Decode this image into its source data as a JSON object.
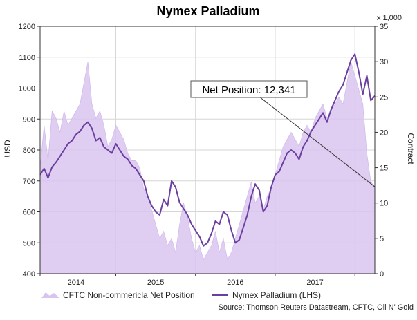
{
  "chart_data": {
    "type": "area",
    "title": "Nymex Palladium",
    "ylabel_left": "USD",
    "ylabel_right": "Contract",
    "right_multiplier": "x 1,000",
    "source": "Source: Thomson Reuters Datastream, CFTC, Oil N' Gold",
    "annotation": "Net Position: 12,341",
    "ylim_left": [
      400,
      1200
    ],
    "ylim_right": [
      0,
      35
    ],
    "yticks_left": [
      "400",
      "500",
      "600",
      "700",
      "800",
      "900",
      "1000",
      "1100",
      "1200"
    ],
    "yticks_right": [
      "0",
      "5",
      "10",
      "15",
      "20",
      "25",
      "30",
      "35"
    ],
    "x_labels": [
      "2014",
      "2015",
      "2016",
      "2017"
    ],
    "x_label_positions": [
      2014.0,
      2015.0,
      2016.0,
      2017.0
    ],
    "x_bounds": [
      2013.55,
      2017.75
    ],
    "x_grid": [
      2013.55,
      2014.5,
      2015.5,
      2016.5,
      2017.5
    ],
    "grid": true,
    "legend_position": "bottom",
    "series": [
      {
        "name": "CFTC Non-commericla Net Position",
        "type": "area",
        "axis": "right",
        "color": "#d9c4f0",
        "x": [
          2013.55,
          2013.6,
          2013.65,
          2013.7,
          2013.75,
          2013.8,
          2013.85,
          2013.9,
          2013.95,
          2014.0,
          2014.05,
          2014.1,
          2014.15,
          2014.2,
          2014.25,
          2014.3,
          2014.35,
          2014.4,
          2014.45,
          2014.5,
          2014.55,
          2014.6,
          2014.65,
          2014.7,
          2014.75,
          2014.8,
          2014.85,
          2014.9,
          2014.95,
          2015.0,
          2015.05,
          2015.1,
          2015.15,
          2015.2,
          2015.25,
          2015.3,
          2015.35,
          2015.4,
          2015.45,
          2015.5,
          2015.55,
          2015.6,
          2015.65,
          2015.7,
          2015.75,
          2015.8,
          2015.85,
          2015.9,
          2015.95,
          2016.0,
          2016.05,
          2016.1,
          2016.15,
          2016.2,
          2016.25,
          2016.3,
          2016.35,
          2016.4,
          2016.45,
          2016.5,
          2016.55,
          2016.6,
          2016.65,
          2016.7,
          2016.75,
          2016.8,
          2016.85,
          2016.9,
          2016.95,
          2017.0,
          2017.05,
          2017.1,
          2017.15,
          2017.2,
          2017.25,
          2017.3,
          2017.35,
          2017.4,
          2017.45,
          2017.5,
          2017.55,
          2017.6,
          2017.65,
          2017.7,
          2017.75
        ],
        "values": [
          15,
          21,
          16,
          23,
          22,
          20,
          23,
          21,
          22,
          23,
          24,
          27,
          30,
          24,
          22,
          23,
          21,
          18,
          19,
          21,
          20,
          19,
          17,
          16,
          16,
          15,
          12,
          11,
          9,
          7,
          5,
          6,
          4,
          5,
          3,
          7,
          10,
          8,
          5,
          3,
          4,
          2,
          3,
          4,
          6,
          3,
          5,
          2,
          3,
          5,
          7,
          9,
          11,
          13,
          10,
          11,
          9,
          11,
          12,
          14,
          16,
          18,
          19,
          20,
          19,
          18,
          20,
          21,
          20,
          22,
          23,
          24,
          22,
          23,
          24,
          25,
          24,
          27,
          30,
          28,
          26,
          24,
          17,
          13,
          12.3
        ]
      },
      {
        "name": "Nymex Palladium (LHS)",
        "type": "line",
        "axis": "left",
        "color": "#6b3fa0",
        "x": [
          2013.55,
          2013.6,
          2013.65,
          2013.7,
          2013.75,
          2013.8,
          2013.85,
          2013.9,
          2013.95,
          2014.0,
          2014.05,
          2014.1,
          2014.15,
          2014.2,
          2014.25,
          2014.3,
          2014.35,
          2014.4,
          2014.45,
          2014.5,
          2014.55,
          2014.6,
          2014.65,
          2014.7,
          2014.75,
          2014.8,
          2014.85,
          2014.9,
          2014.95,
          2015.0,
          2015.05,
          2015.1,
          2015.15,
          2015.2,
          2015.25,
          2015.3,
          2015.35,
          2015.4,
          2015.45,
          2015.5,
          2015.55,
          2015.6,
          2015.65,
          2015.7,
          2015.75,
          2015.8,
          2015.85,
          2015.9,
          2015.95,
          2016.0,
          2016.05,
          2016.1,
          2016.15,
          2016.2,
          2016.25,
          2016.3,
          2016.35,
          2016.4,
          2016.45,
          2016.5,
          2016.55,
          2016.6,
          2016.65,
          2016.7,
          2016.75,
          2016.8,
          2016.85,
          2016.9,
          2016.95,
          2017.0,
          2017.05,
          2017.1,
          2017.15,
          2017.2,
          2017.25,
          2017.3,
          2017.35,
          2017.4,
          2017.45,
          2017.5,
          2017.55,
          2017.6,
          2017.65,
          2017.7,
          2017.75
        ],
        "values": [
          720,
          740,
          710,
          745,
          760,
          780,
          800,
          820,
          830,
          850,
          860,
          880,
          890,
          870,
          830,
          840,
          810,
          800,
          790,
          820,
          800,
          780,
          770,
          750,
          740,
          720,
          700,
          650,
          620,
          600,
          590,
          640,
          620,
          700,
          680,
          630,
          610,
          590,
          560,
          540,
          520,
          490,
          500,
          530,
          570,
          560,
          600,
          590,
          540,
          500,
          510,
          550,
          590,
          650,
          690,
          670,
          600,
          620,
          680,
          720,
          730,
          760,
          790,
          800,
          790,
          770,
          810,
          830,
          860,
          880,
          900,
          920,
          890,
          930,
          960,
          990,
          1010,
          1050,
          1090,
          1110,
          1050,
          980,
          1040,
          960,
          975
        ]
      }
    ]
  }
}
